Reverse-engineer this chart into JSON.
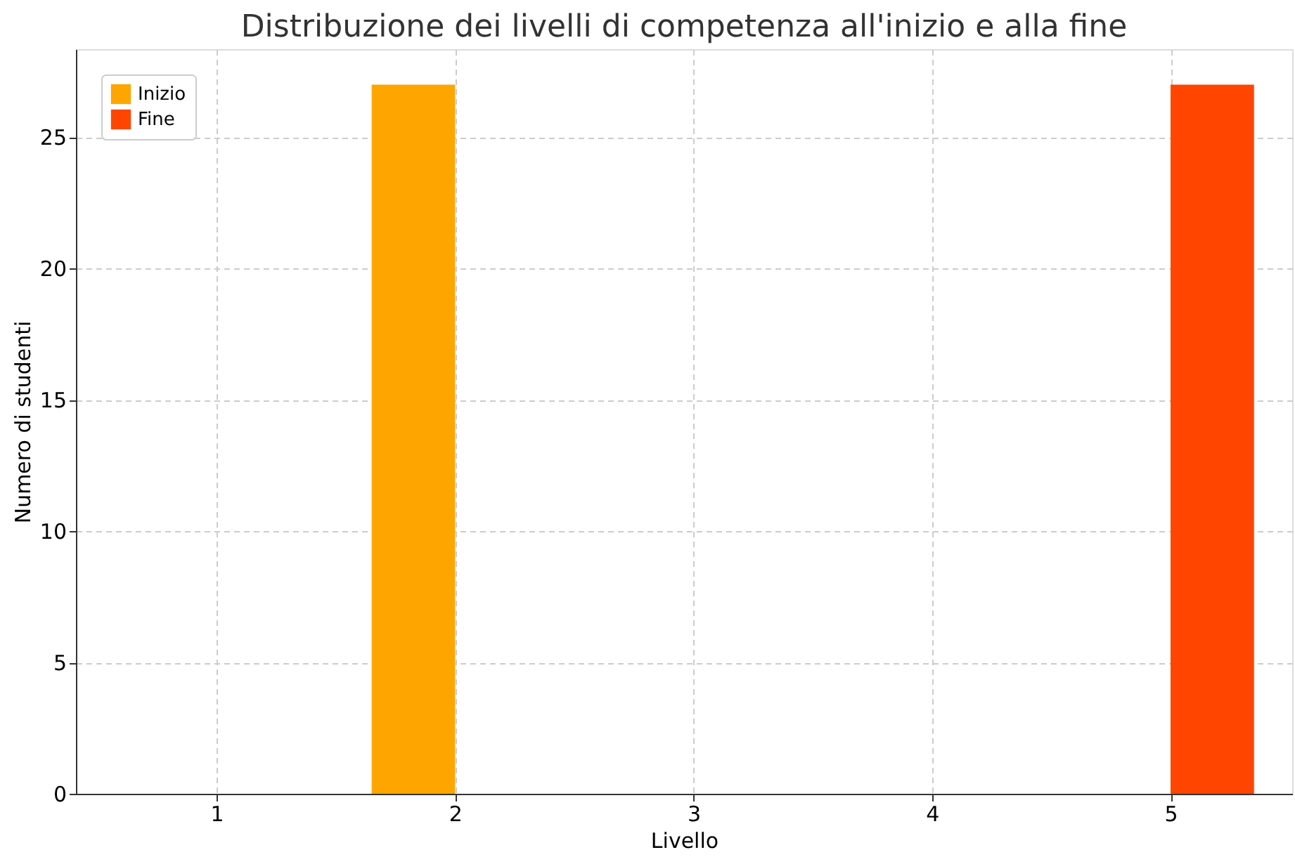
{
  "chart_data": {
    "type": "bar",
    "title": "Distribuzione dei livelli di competenza all'inizio e alla fine",
    "xlabel": "Livello",
    "ylabel": "Numero di studenti",
    "x": [
      1,
      2,
      3,
      4,
      5
    ],
    "series": [
      {
        "name": "Inizio",
        "color": "#ffa500",
        "values": [
          0,
          27,
          0,
          0,
          0
        ]
      },
      {
        "name": "Fine",
        "color": "#ff4500",
        "values": [
          0,
          0,
          0,
          0,
          27
        ]
      }
    ],
    "xlim": [
      0.41,
      5.51
    ],
    "xticks": [
      1,
      2,
      3,
      4,
      5
    ],
    "ylim": [
      0,
      28.35
    ],
    "yticks": [
      0,
      5,
      10,
      15,
      20,
      25
    ],
    "grid": true,
    "legend": "top left"
  }
}
